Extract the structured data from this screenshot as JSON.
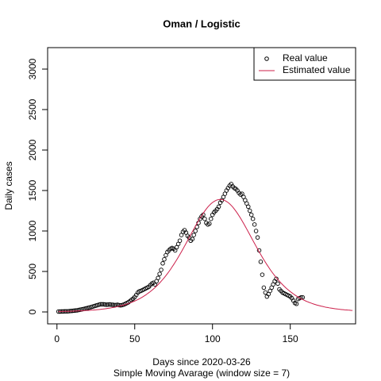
{
  "chart_data": {
    "type": "scatter",
    "title": "Oman / Logistic",
    "xlabel": "Days since 2020-03-26",
    "subtitle": "Simple Moving Avarage (window size = 7)",
    "ylabel": "Daily cases",
    "legend": "topright",
    "xlim": [
      -6,
      192
    ],
    "ylim": [
      -147,
      3265
    ],
    "xticks": [
      0,
      50,
      100,
      150
    ],
    "yticks": [
      0,
      500,
      1000,
      1500,
      2000,
      2500,
      3000
    ],
    "x": [
      1,
      2,
      3,
      4,
      5,
      6,
      7,
      8,
      9,
      10,
      11,
      12,
      13,
      14,
      15,
      16,
      17,
      18,
      19,
      20,
      21,
      22,
      23,
      24,
      25,
      26,
      27,
      28,
      29,
      30,
      31,
      32,
      33,
      34,
      35,
      36,
      37,
      38,
      39,
      40,
      41,
      42,
      43,
      44,
      45,
      46,
      47,
      48,
      49,
      50,
      51,
      52,
      53,
      54,
      55,
      56,
      57,
      58,
      59,
      60,
      61,
      62,
      63,
      64,
      65,
      66,
      67,
      68,
      69,
      70,
      71,
      72,
      73,
      74,
      75,
      76,
      77,
      78,
      79,
      80,
      81,
      82,
      83,
      84,
      85,
      86,
      87,
      88,
      89,
      90,
      91,
      92,
      93,
      94,
      95,
      96,
      97,
      98,
      99,
      100,
      101,
      102,
      103,
      104,
      105,
      106,
      107,
      108,
      109,
      110,
      111,
      112,
      113,
      114,
      115,
      116,
      117,
      118,
      119,
      120,
      121,
      122,
      123,
      124,
      125,
      126,
      127,
      128,
      129,
      130,
      131,
      132,
      133,
      134,
      135,
      136,
      137,
      138,
      139,
      140,
      141,
      142,
      143,
      144,
      145,
      146,
      147,
      148,
      149,
      150,
      151,
      152,
      153,
      154,
      155,
      156,
      157,
      158,
      159,
      160,
      161,
      162,
      163,
      164,
      165,
      166,
      167,
      168,
      169,
      170,
      171,
      172,
      173,
      174,
      175,
      176,
      177,
      178,
      179,
      180,
      181,
      182,
      183,
      184,
      185,
      186,
      187,
      188,
      189,
      190
    ],
    "series": [
      {
        "name": "Real value",
        "type": "scatter",
        "color": "#000000",
        "values": [
          5,
          5,
          6,
          6,
          7,
          8,
          8,
          10,
          12,
          14,
          16,
          18,
          20,
          24,
          28,
          32,
          36,
          40,
          45,
          50,
          55,
          60,
          66,
          72,
          78,
          84,
          90,
          94,
          95,
          94,
          92,
          90,
          92,
          93,
          90,
          88,
          85,
          86,
          88,
          84,
          82,
          85,
          92,
          100,
          110,
          120,
          135,
          150,
          165,
          185,
          210,
          240,
          255,
          260,
          270,
          280,
          290,
          300,
          310,
          330,
          350,
          360,
          340,
          380,
          420,
          470,
          520,
          600,
          650,
          700,
          740,
          760,
          780,
          790,
          780,
          760,
          800,
          840,
          880,
          950,
          990,
          1010,
          980,
          940,
          920,
          880,
          900,
          950,
          1000,
          1050,
          1100,
          1150,
          1180,
          1200,
          1150,
          1100,
          1080,
          1090,
          1150,
          1200,
          1230,
          1250,
          1270,
          1300,
          1350,
          1380,
          1420,
          1460,
          1500,
          1530,
          1560,
          1580,
          1550,
          1530,
          1520,
          1500,
          1470,
          1450,
          1460,
          1420,
          1380,
          1340,
          1300,
          1250,
          1200,
          1150,
          1080,
          1000,
          920,
          760,
          620,
          460,
          300,
          240,
          190,
          220,
          260,
          300,
          340,
          380,
          410,
          350,
          280,
          260,
          240,
          230,
          220,
          210,
          200,
          190,
          170,
          140,
          110,
          100,
          160,
          170,
          180,
          180,
          null,
          null,
          null,
          null,
          null,
          null,
          null,
          null,
          null,
          null,
          null,
          null,
          null,
          null,
          null,
          null,
          null,
          null,
          null,
          null,
          null,
          null,
          null,
          null,
          null,
          null,
          null,
          null,
          null,
          null,
          null,
          null
        ]
      },
      {
        "name": "Estimated value",
        "type": "line",
        "color": "#cc1f4a",
        "values": [
          5,
          6,
          6,
          7,
          7,
          8,
          8,
          9,
          9,
          10,
          11,
          11,
          12,
          13,
          14,
          14,
          16,
          17,
          18,
          19,
          20,
          22,
          23,
          25,
          26,
          28,
          30,
          32,
          35,
          37,
          39,
          42,
          45,
          48,
          51,
          55,
          58,
          62,
          67,
          71,
          76,
          81,
          86,
          92,
          98,
          105,
          112,
          119,
          127,
          135,
          144,
          153,
          163,
          174,
          185,
          197,
          209,
          223,
          237,
          251,
          267,
          283,
          300,
          319,
          338,
          358,
          379,
          401,
          424,
          448,
          473,
          499,
          526,
          555,
          584,
          614,
          645,
          677,
          710,
          743,
          777,
          812,
          847,
          882,
          918,
          954,
          989,
          1024,
          1059,
          1093,
          1126,
          1159,
          1189,
          1219,
          1246,
          1272,
          1296,
          1317,
          1336,
          1352,
          1365,
          1376,
          1384,
          1388,
          1390,
          1388,
          1384,
          1376,
          1365,
          1352,
          1336,
          1317,
          1296,
          1272,
          1246,
          1219,
          1189,
          1159,
          1126,
          1093,
          1059,
          1024,
          989,
          954,
          918,
          882,
          847,
          812,
          777,
          743,
          710,
          677,
          645,
          614,
          584,
          555,
          526,
          499,
          473,
          448,
          424,
          401,
          379,
          358,
          338,
          319,
          300,
          283,
          267,
          251,
          237,
          223,
          209,
          197,
          185,
          174,
          163,
          153,
          144,
          135,
          127,
          119,
          112,
          105,
          98,
          92,
          86,
          81,
          76,
          71,
          67,
          62,
          58,
          55,
          51,
          48,
          45,
          42,
          39,
          37,
          35,
          32,
          30,
          28,
          26,
          25,
          23,
          22,
          20,
          19
        ]
      }
    ]
  }
}
